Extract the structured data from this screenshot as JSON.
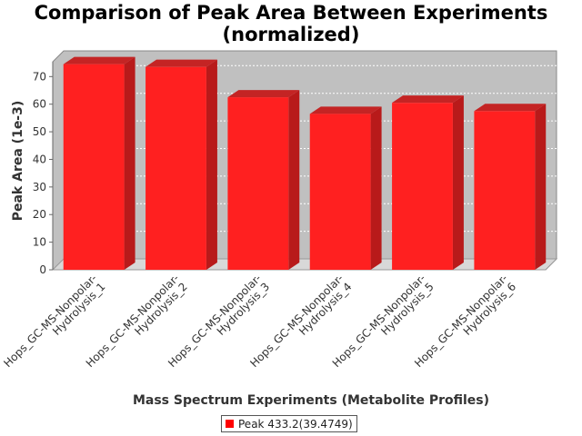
{
  "chart_data": {
    "type": "bar",
    "title": "Comparison of Peak Area Between Experiments\n(normalized)",
    "title_lines": [
      "Comparison of Peak Area Between Experiments",
      "(normalized)"
    ],
    "xlabel": "Mass Spectrum Experiments (Metabolite Profiles)",
    "ylabel": "Peak Area (1e-3)",
    "categories": [
      "Hops_GC-MS-Nonpolar-Hydrolysis_1",
      "Hops_GC-MS-Nonpolar-Hydrolysis_2",
      "Hops_GC-MS-Nonpolar-Hydrolysis_3",
      "Hops_GC-MS-Nonpolar-Hydrolysis_4",
      "Hops_GC-MS-Nonpolar-Hydrolysis_5",
      "Hops_GC-MS-Nonpolar-Hydrolysis_6"
    ],
    "category_label_lines": [
      [
        "Hops_GC-MS-Nonpolar-",
        "Hydrolysis_1"
      ],
      [
        "Hops_GC-MS-Nonpolar-",
        "Hydrolysis_2"
      ],
      [
        "Hops_GC-MS-Nonpolar-",
        "Hydrolysis_3"
      ],
      [
        "Hops_GC-MS-Nonpolar-",
        "Hydrolysis_4"
      ],
      [
        "Hops_GC-MS-Nonpolar-",
        "Hydrolysis_5"
      ],
      [
        "Hops_GC-MS-Nonpolar-",
        "Hydrolysis_6"
      ]
    ],
    "series": [
      {
        "name": "Peak 433.2(39.4749)",
        "values": [
          74.5,
          73.5,
          62.5,
          56.5,
          60.5,
          57.5
        ]
      }
    ],
    "ylim": [
      0,
      78
    ],
    "yticks": [
      0,
      10,
      20,
      30,
      40,
      50,
      60,
      70
    ],
    "grid": true,
    "legend_position": "bottom",
    "style": "3d",
    "colors": {
      "bar": "#ff2020",
      "plot_background": "#c0c0c0",
      "gridline": "#ffffff"
    }
  }
}
